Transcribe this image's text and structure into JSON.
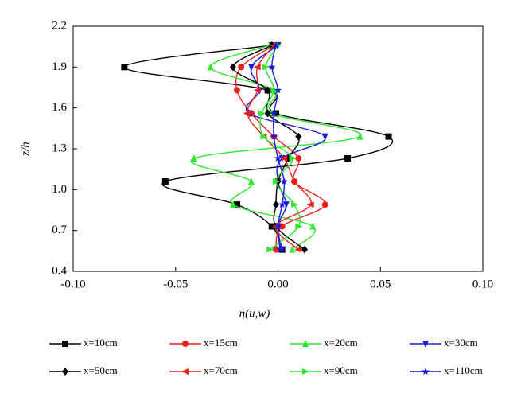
{
  "chart_data": {
    "type": "profile",
    "xlabel": "η(u,w)",
    "ylabel": "z/h",
    "xlim": [
      -0.1,
      0.1
    ],
    "xticks": [
      {
        "value": -0.1,
        "label": "-0.10"
      },
      {
        "value": -0.05,
        "label": "-0.05"
      },
      {
        "value": 0,
        "label": "0.00"
      },
      {
        "value": 0.05,
        "label": "0.05"
      },
      {
        "value": 0.1,
        "label": "0.10"
      }
    ],
    "ylim": [
      0.4,
      2.2
    ],
    "yticks": [
      0.4,
      0.7,
      {
        "value": 1.0,
        "label": "1.0"
      },
      1.3,
      1.6,
      1.9,
      2.2
    ],
    "y": [
      0.56,
      0.73,
      0.89,
      1.06,
      1.23,
      1.39,
      1.56,
      1.73,
      1.9,
      2.06
    ],
    "series": [
      {
        "name": "x=10cm",
        "color": "#000000",
        "marker": "square",
        "x": [
          0.002,
          -0.003,
          -0.02,
          -0.055,
          0.034,
          0.054,
          -0.001,
          -0.005,
          -0.075,
          -0.003
        ]
      },
      {
        "name": "x=15cm",
        "color": "#e8201e",
        "marker": "circle",
        "x": [
          -0.001,
          0.002,
          0.023,
          0.008,
          0.01,
          -0.002,
          -0.013,
          -0.02,
          -0.018,
          -0.002
        ]
      },
      {
        "name": "x=20cm",
        "color": "#2ee82e",
        "marker": "triangle-up",
        "x": [
          0.007,
          0.017,
          -0.022,
          -0.013,
          -0.041,
          0.04,
          -0.003,
          -0.002,
          -0.033,
          -0.004
        ]
      },
      {
        "name": "x=30cm",
        "color": "#1a1ad8",
        "marker": "triangle-down",
        "x": [
          0.002,
          0.0,
          0.004,
          0.0,
          0.002,
          0.023,
          -0.014,
          -0.009,
          -0.013,
          0.0
        ]
      },
      {
        "name": "x=50cm",
        "color": "#000000",
        "marker": "diamond",
        "x": [
          0.013,
          -0.001,
          -0.001,
          0.0,
          0.005,
          0.01,
          -0.005,
          -0.005,
          -0.022,
          -0.003
        ]
      },
      {
        "name": "x=70cm",
        "color": "#e8201e",
        "marker": "triangle-left",
        "x": [
          0.01,
          -0.001,
          0.016,
          0.008,
          0.003,
          -0.007,
          -0.015,
          -0.01,
          -0.01,
          -0.002
        ]
      },
      {
        "name": "x=90cm",
        "color": "#2ee82e",
        "marker": "triangle-right",
        "x": [
          -0.004,
          0.01,
          0.008,
          -0.001,
          0.007,
          -0.007,
          -0.008,
          -0.002,
          -0.006,
          0.0
        ]
      },
      {
        "name": "x=110cm",
        "color": "#1a1ad8",
        "marker": "star",
        "x": [
          0.001,
          0.0,
          0.002,
          0.003,
          0.0,
          -0.002,
          -0.002,
          0.0,
          -0.003,
          -0.001
        ]
      }
    ]
  }
}
